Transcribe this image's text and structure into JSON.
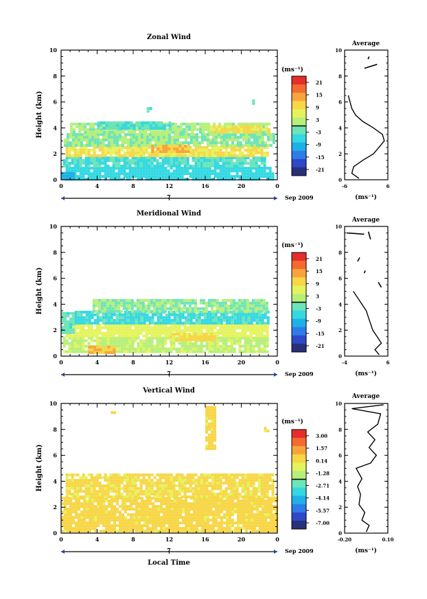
{
  "chart_data": [
    {
      "type": "heatmap",
      "title": "Zonal Wind",
      "ylabel": "Height (km)",
      "ylim": [
        0,
        10
      ],
      "yticks": [
        "0",
        "2",
        "4",
        "6",
        "8",
        "10"
      ],
      "xticks": [
        "0",
        "4",
        "8",
        "12",
        "16",
        "20",
        "0"
      ],
      "xlim": [
        0,
        24
      ],
      "day_label": "7",
      "date_label": "Sep 2009",
      "colorbar": {
        "unit": "(ms⁻¹)",
        "labels": [
          "21",
          "15",
          "9",
          "3",
          "-3",
          "-9",
          "-15",
          "-21"
        ],
        "range": [
          -24,
          24
        ]
      },
      "regions": [
        {
          "x": [
            0.5,
            23.5
          ],
          "y": [
            0.1,
            1.0
          ],
          "value": -6
        },
        {
          "x": [
            0.2,
            22.5
          ],
          "y": [
            1.0,
            1.8
          ],
          "value": -4
        },
        {
          "x": [
            0.5,
            23.0
          ],
          "y": [
            1.8,
            2.6
          ],
          "value": 8
        },
        {
          "x": [
            0.3,
            23.5
          ],
          "y": [
            2.6,
            3.6
          ],
          "value": 0
        },
        {
          "x": [
            1.0,
            23.0
          ],
          "y": [
            3.6,
            4.4
          ],
          "value": 1
        },
        {
          "x": [
            4.0,
            12.0
          ],
          "y": [
            3.9,
            4.5
          ],
          "value": -4
        },
        {
          "x": [
            16.5,
            23.0
          ],
          "y": [
            3.7,
            4.2
          ],
          "value": 9
        },
        {
          "x": [
            10.0,
            14.0
          ],
          "y": [
            2.2,
            2.7
          ],
          "value": 12
        },
        {
          "x": [
            9.5,
            10.0
          ],
          "y": [
            5.3,
            5.6
          ],
          "value": -3
        },
        {
          "x": [
            21.2,
            21.5
          ],
          "y": [
            5.8,
            6.2
          ],
          "value": -3
        },
        {
          "x": [
            0.0,
            1.5
          ],
          "y": [
            0.1,
            0.6
          ],
          "value": -10
        }
      ],
      "average_panel": {
        "title": "Average",
        "xticks": [
          "-6",
          "6"
        ],
        "xlim": [
          -6,
          6
        ],
        "ylim": [
          0,
          10
        ],
        "yticks": [
          "0",
          "2",
          "4",
          "6",
          "8",
          "10"
        ],
        "xunit": "(ms⁻¹)",
        "profile": [
          [
            -2.0,
            0.1
          ],
          [
            -4.0,
            0.5
          ],
          [
            -3.5,
            1.0
          ],
          [
            -1.0,
            1.5
          ],
          [
            2.0,
            2.0
          ],
          [
            3.5,
            2.5
          ],
          [
            5.0,
            3.0
          ],
          [
            4.5,
            3.5
          ],
          [
            2.0,
            4.0
          ],
          [
            -1.0,
            4.5
          ],
          [
            -3.0,
            5.0
          ],
          [
            -4.0,
            5.5
          ],
          [
            -4.5,
            6.0
          ],
          [
            -5.0,
            6.5
          ]
        ],
        "segments": [
          [
            [
              -0.5,
              8.6
            ],
            [
              3.0,
              8.9
            ]
          ],
          [
            [
              0.5,
              9.3
            ],
            [
              0.8,
              9.5
            ]
          ]
        ]
      }
    },
    {
      "type": "heatmap",
      "title": "Meridional Wind",
      "ylabel": "Height (km)",
      "ylim": [
        0,
        10
      ],
      "yticks": [
        "0",
        "2",
        "4",
        "6",
        "8",
        "10"
      ],
      "xticks": [
        "0",
        "4",
        "8",
        "12",
        "16",
        "20",
        "0"
      ],
      "xlim": [
        0,
        24
      ],
      "day_label": "7",
      "date_label": "Sep 2009",
      "colorbar": {
        "unit": "(ms⁻¹)",
        "labels": [
          "21",
          "15",
          "9",
          "3",
          "-3",
          "-9",
          "-15",
          "-21"
        ],
        "range": [
          -24,
          24
        ]
      },
      "regions": [
        {
          "x": [
            0.2,
            23.0
          ],
          "y": [
            0.3,
            1.5
          ],
          "value": 3
        },
        {
          "x": [
            0.5,
            23.0
          ],
          "y": [
            1.5,
            2.5
          ],
          "value": 6
        },
        {
          "x": [
            1.5,
            23.0
          ],
          "y": [
            2.5,
            3.5
          ],
          "value": -5
        },
        {
          "x": [
            3.5,
            23.0
          ],
          "y": [
            3.5,
            4.4
          ],
          "value": 0
        },
        {
          "x": [
            0.0,
            1.5
          ],
          "y": [
            1.8,
            3.4
          ],
          "value": -3
        },
        {
          "x": [
            3.0,
            6.0
          ],
          "y": [
            0.3,
            0.8
          ],
          "value": 12
        },
        {
          "x": [
            12.0,
            17.0
          ],
          "y": [
            1.2,
            1.8
          ],
          "value": 9
        }
      ],
      "average_panel": {
        "title": "Average",
        "xticks": [
          "-4",
          "6"
        ],
        "xlim": [
          -4,
          6
        ],
        "ylim": [
          0,
          10
        ],
        "yticks": [
          "0",
          "2",
          "4",
          "6",
          "8",
          "10"
        ],
        "xunit": "(ms⁻¹)",
        "profile": [
          [
            4.0,
            0.1
          ],
          [
            3.0,
            0.5
          ],
          [
            4.5,
            1.0
          ],
          [
            3.5,
            1.5
          ],
          [
            2.5,
            2.0
          ],
          [
            2.0,
            2.5
          ],
          [
            1.5,
            3.0
          ],
          [
            1.0,
            3.5
          ],
          [
            0.0,
            4.0
          ],
          [
            -1.0,
            4.5
          ],
          [
            -2.0,
            5.0
          ]
        ],
        "segments": [
          [
            [
              -3.5,
              9.5
            ],
            [
              0.5,
              9.4
            ]
          ],
          [
            [
              1.5,
              9.6
            ],
            [
              2.0,
              9.0
            ]
          ],
          [
            [
              -0.5,
              7.6
            ],
            [
              -1.0,
              7.3
            ]
          ],
          [
            [
              0.5,
              6.4
            ],
            [
              0.8,
              6.6
            ]
          ],
          [
            [
              3.8,
              5.7
            ],
            [
              4.5,
              5.3
            ]
          ]
        ]
      }
    },
    {
      "type": "heatmap",
      "title": "Vertical Wind",
      "ylabel": "Height (km)",
      "xlabel": "Local Time",
      "ylim": [
        0,
        10
      ],
      "yticks": [
        "0",
        "2",
        "4",
        "6",
        "8",
        "10"
      ],
      "xticks": [
        "0",
        "4",
        "8",
        "12",
        "16",
        "20",
        "0"
      ],
      "xlim": [
        0,
        24
      ],
      "day_label": "7",
      "date_label": "Sep 2009",
      "colorbar": {
        "unit": "(ms⁻¹)",
        "labels": [
          "3.00",
          "1.57",
          "0.14",
          "-1.28",
          "-2.71",
          "-4.14",
          "-5.57",
          "-7.00"
        ],
        "range": [
          -8.43,
          4.43
        ]
      },
      "regions": [
        {
          "x": [
            0.0,
            24.0
          ],
          "y": [
            0.1,
            2.8
          ],
          "value": 0.6
        },
        {
          "x": [
            0.5,
            23.5
          ],
          "y": [
            2.8,
            4.6
          ],
          "value": 0.4
        },
        {
          "x": [
            16.0,
            17.0
          ],
          "y": [
            6.5,
            9.8
          ],
          "value": 0.5
        },
        {
          "x": [
            5.5,
            6.0
          ],
          "y": [
            9.0,
            9.4
          ],
          "value": 0.5
        },
        {
          "x": [
            22.5,
            23.0
          ],
          "y": [
            7.9,
            8.2
          ],
          "value": 0.5
        }
      ],
      "average_panel": {
        "title": "Average",
        "xticks": [
          "-0.20",
          "0.10"
        ],
        "xlim": [
          -0.2,
          0.1
        ],
        "ylim": [
          0,
          10
        ],
        "yticks": [
          "0",
          "2",
          "4",
          "6",
          "8",
          "10"
        ],
        "xunit": "(ms⁻¹)",
        "profile": [
          [
            -0.05,
            0.1
          ],
          [
            -0.03,
            0.6
          ],
          [
            -0.08,
            1.0
          ],
          [
            -0.06,
            1.6
          ],
          [
            -0.1,
            2.2
          ],
          [
            -0.09,
            3.0
          ],
          [
            -0.11,
            3.6
          ],
          [
            -0.08,
            4.2
          ],
          [
            -0.12,
            5.0
          ],
          [
            -0.02,
            5.4
          ],
          [
            0.02,
            6.0
          ],
          [
            -0.03,
            6.6
          ],
          [
            0.01,
            7.2
          ],
          [
            -0.04,
            7.8
          ],
          [
            0.03,
            8.4
          ],
          [
            0.05,
            9.2
          ],
          [
            -0.15,
            9.6
          ],
          [
            0.07,
            9.9
          ]
        ],
        "segments": []
      }
    }
  ]
}
